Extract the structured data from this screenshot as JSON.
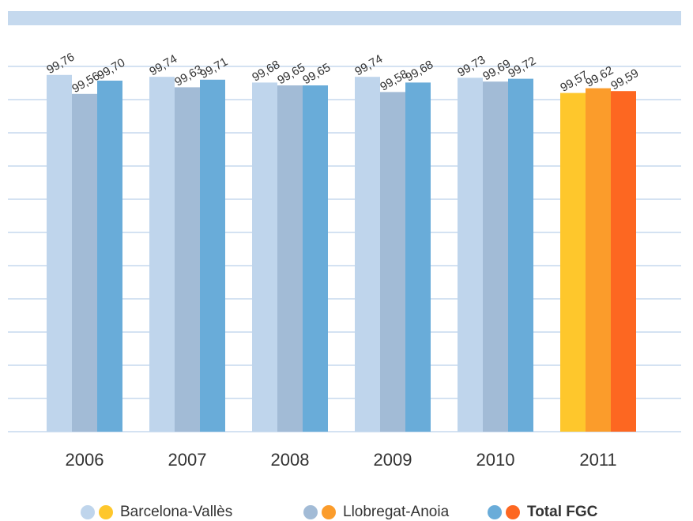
{
  "chart_data": {
    "type": "bar",
    "categories": [
      "2006",
      "2007",
      "2008",
      "2009",
      "2010",
      "2011"
    ],
    "series": [
      {
        "name": "Barcelona-Vallès",
        "colors": [
          "#bfd5ec",
          "#bfd5ec",
          "#bfd5ec",
          "#bfd5ec",
          "#bfd5ec",
          "#fec72c"
        ],
        "values": [
          99.76,
          99.74,
          99.68,
          99.74,
          99.73,
          99.57
        ],
        "value_labels": [
          "99,76",
          "99,74",
          "99,68",
          "99,74",
          "99,73",
          "99,57"
        ]
      },
      {
        "name": "Llobregat-Anoia",
        "colors": [
          "#a2bbd6",
          "#a2bbd6",
          "#a2bbd6",
          "#a2bbd6",
          "#a2bbd6",
          "#fb9c2b"
        ],
        "values": [
          99.56,
          99.63,
          99.65,
          99.58,
          99.69,
          99.62
        ],
        "value_labels": [
          "99,56",
          "99,63",
          "99,65",
          "99,58",
          "99,69",
          "99,62"
        ]
      },
      {
        "name": "Total FGC",
        "bold": true,
        "colors": [
          "#69acd9",
          "#69acd9",
          "#69acd9",
          "#69acd9",
          "#69acd9",
          "#fd6721"
        ],
        "values": [
          99.7,
          99.71,
          99.65,
          99.68,
          99.72,
          99.59
        ],
        "value_labels": [
          "99,70",
          "99,71",
          "99,65",
          "99,68",
          "99,72",
          "99,59"
        ]
      }
    ],
    "ylim": [
      96,
      100
    ],
    "yticks": [
      96,
      96.35,
      96.7,
      97.05,
      97.4,
      97.75,
      98.1,
      98.45,
      98.8,
      99.15,
      99.5,
      99.85
    ],
    "grid": true
  }
}
